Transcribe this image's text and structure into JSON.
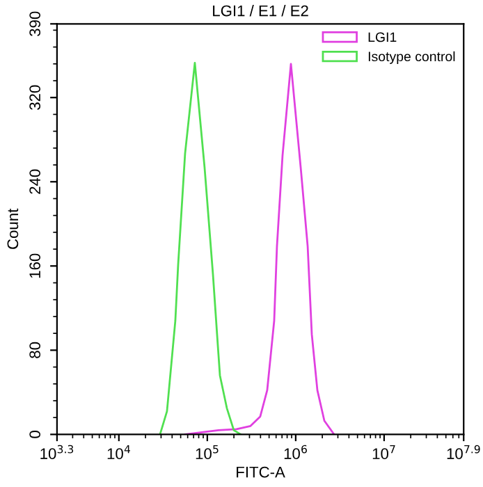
{
  "chart_data": {
    "type": "line",
    "title": "LGI1 / E1 / E2",
    "xlabel": "FITC-A",
    "ylabel": "Count",
    "log": "x",
    "grid": false,
    "legend": "top right",
    "marker": "none",
    "line_style": "solid",
    "xlim": [
      1995.26,
      79432823
    ],
    "ylim": [
      0,
      390
    ],
    "xticks": [
      {
        "value": 1995.26,
        "label": "10$^{3.3}$"
      },
      {
        "value": 10000,
        "label": "10$^{4}$"
      },
      {
        "value": 100000,
        "label": "10$^{5}$"
      },
      {
        "value": 1000000,
        "label": "10$^{6}$"
      },
      {
        "value": 10000000,
        "label": "10$^{7}$"
      },
      {
        "value": 79432823,
        "label": "10$^{7.9}$"
      }
    ],
    "yticks": [
      0,
      80,
      160,
      240,
      320,
      390
    ],
    "series": [
      {
        "name": "LGI1",
        "color": "#e040e0",
        "x": [
          56100,
          134000,
          214300,
          308000,
          397000,
          476000,
          571000,
          614000,
          710000,
          883000,
          1138000,
          1365000,
          1521000,
          1758000,
          2108000,
          2718000
        ],
        "values": [
          0,
          4,
          5,
          8,
          17,
          42,
          108,
          179,
          265,
          352,
          254,
          179,
          95,
          42,
          13,
          0
        ]
      },
      {
        "name": "Isotype control",
        "color": "#50e050",
        "x": [
          29200,
          35000,
          43500,
          46800,
          56100,
          72300,
          93100,
          115900,
          129000,
          139000,
          166400,
          199500,
          239300
        ],
        "values": [
          0,
          22,
          108,
          161,
          267,
          353,
          254,
          152,
          95,
          56,
          25,
          4,
          0
        ]
      }
    ]
  }
}
